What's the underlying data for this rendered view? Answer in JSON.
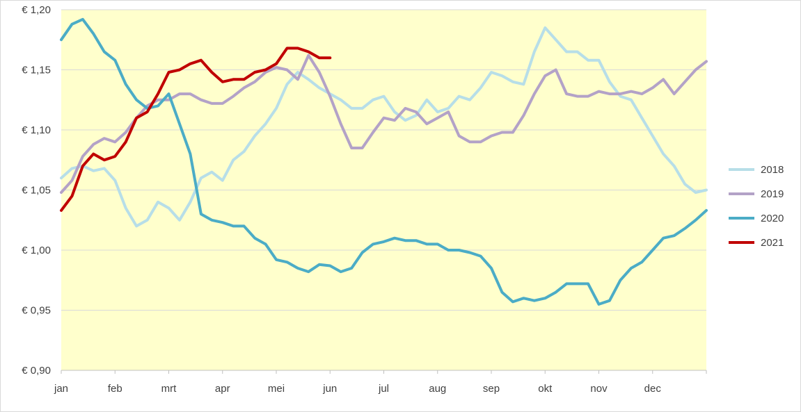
{
  "chart_data": {
    "type": "line",
    "title": "",
    "xlabel": "",
    "ylabel": "",
    "ylim": [
      0.9,
      1.2
    ],
    "y_ticks": [
      "€ 0,90",
      "€ 0,95",
      "€ 1,00",
      "€ 1,05",
      "€ 1,10",
      "€ 1,15",
      "€ 1,20"
    ],
    "x_ticks": [
      "jan",
      "feb",
      "mrt",
      "apr",
      "mei",
      "jun",
      "jul",
      "aug",
      "sep",
      "okt",
      "nov",
      "dec"
    ],
    "x_unit": "month index (0 = jan, 12 = end of dec)",
    "plot_background": "#FFFFCC",
    "gridlines": true,
    "legend_position": "right",
    "series": [
      {
        "name": "2018",
        "color": "#B7DEE8",
        "x": [
          0,
          0.2,
          0.4,
          0.6,
          0.8,
          1.0,
          1.2,
          1.4,
          1.6,
          1.8,
          2.0,
          2.2,
          2.4,
          2.6,
          2.8,
          3.0,
          3.2,
          3.4,
          3.6,
          3.8,
          4.0,
          4.2,
          4.4,
          4.6,
          4.8,
          5.0,
          5.2,
          5.4,
          5.6,
          5.8,
          6.0,
          6.2,
          6.4,
          6.6,
          6.8,
          7.0,
          7.2,
          7.4,
          7.6,
          7.8,
          8.0,
          8.2,
          8.4,
          8.6,
          8.8,
          9.0,
          9.2,
          9.4,
          9.6,
          9.8,
          10.0,
          10.2,
          10.4,
          10.6,
          10.8,
          11.0,
          11.2,
          11.4,
          11.6,
          11.8,
          12.0
        ],
        "y": [
          1.06,
          1.068,
          1.07,
          1.066,
          1.068,
          1.058,
          1.035,
          1.02,
          1.025,
          1.04,
          1.035,
          1.025,
          1.04,
          1.06,
          1.065,
          1.058,
          1.075,
          1.082,
          1.095,
          1.105,
          1.118,
          1.138,
          1.148,
          1.142,
          1.135,
          1.13,
          1.125,
          1.118,
          1.118,
          1.125,
          1.128,
          1.115,
          1.108,
          1.112,
          1.125,
          1.115,
          1.118,
          1.128,
          1.125,
          1.135,
          1.148,
          1.145,
          1.14,
          1.138,
          1.165,
          1.185,
          1.175,
          1.165,
          1.165,
          1.158,
          1.158,
          1.14,
          1.128,
          1.125,
          1.11,
          1.095,
          1.08,
          1.07,
          1.055,
          1.048,
          1.05
        ]
      },
      {
        "name": "2019",
        "color": "#B3A2C7",
        "x": [
          0,
          0.2,
          0.4,
          0.6,
          0.8,
          1.0,
          1.2,
          1.4,
          1.6,
          1.8,
          2.0,
          2.2,
          2.4,
          2.6,
          2.8,
          3.0,
          3.2,
          3.4,
          3.6,
          3.8,
          4.0,
          4.2,
          4.4,
          4.6,
          4.8,
          5.0,
          5.2,
          5.4,
          5.6,
          5.8,
          6.0,
          6.2,
          6.4,
          6.6,
          6.8,
          7.0,
          7.2,
          7.4,
          7.6,
          7.8,
          8.0,
          8.2,
          8.4,
          8.6,
          8.8,
          9.0,
          9.2,
          9.4,
          9.6,
          9.8,
          10.0,
          10.2,
          10.4,
          10.6,
          10.8,
          11.0,
          11.2,
          11.4,
          11.6,
          11.8,
          12.0
        ],
        "y": [
          1.048,
          1.058,
          1.078,
          1.088,
          1.093,
          1.09,
          1.098,
          1.11,
          1.12,
          1.125,
          1.125,
          1.13,
          1.13,
          1.125,
          1.122,
          1.122,
          1.128,
          1.135,
          1.14,
          1.148,
          1.152,
          1.15,
          1.142,
          1.162,
          1.148,
          1.128,
          1.105,
          1.085,
          1.085,
          1.098,
          1.11,
          1.108,
          1.118,
          1.115,
          1.105,
          1.11,
          1.115,
          1.095,
          1.09,
          1.09,
          1.095,
          1.098,
          1.098,
          1.112,
          1.13,
          1.145,
          1.15,
          1.13,
          1.128,
          1.128,
          1.132,
          1.13,
          1.13,
          1.132,
          1.13,
          1.135,
          1.142,
          1.13,
          1.14,
          1.15,
          1.157
        ]
      },
      {
        "name": "2020",
        "color": "#4BACC6",
        "x": [
          0,
          0.2,
          0.4,
          0.6,
          0.8,
          1.0,
          1.2,
          1.4,
          1.6,
          1.8,
          2.0,
          2.2,
          2.4,
          2.6,
          2.8,
          3.0,
          3.2,
          3.4,
          3.6,
          3.8,
          4.0,
          4.2,
          4.4,
          4.6,
          4.8,
          5.0,
          5.2,
          5.4,
          5.6,
          5.8,
          6.0,
          6.2,
          6.4,
          6.6,
          6.8,
          7.0,
          7.2,
          7.4,
          7.6,
          7.8,
          8.0,
          8.2,
          8.4,
          8.6,
          8.8,
          9.0,
          9.2,
          9.4,
          9.6,
          9.8,
          10.0,
          10.2,
          10.4,
          10.6,
          10.8,
          11.0,
          11.2,
          11.4,
          11.6,
          11.8,
          12.0
        ],
        "y": [
          1.175,
          1.188,
          1.192,
          1.18,
          1.165,
          1.158,
          1.138,
          1.125,
          1.118,
          1.12,
          1.13,
          1.105,
          1.08,
          1.03,
          1.025,
          1.023,
          1.02,
          1.02,
          1.01,
          1.005,
          0.992,
          0.99,
          0.985,
          0.982,
          0.988,
          0.987,
          0.982,
          0.985,
          0.998,
          1.005,
          1.007,
          1.01,
          1.008,
          1.008,
          1.005,
          1.005,
          1.0,
          1.0,
          0.998,
          0.995,
          0.985,
          0.965,
          0.957,
          0.96,
          0.958,
          0.96,
          0.965,
          0.972,
          0.972,
          0.972,
          0.955,
          0.958,
          0.975,
          0.985,
          0.99,
          1.0,
          1.01,
          1.012,
          1.018,
          1.025,
          1.033
        ]
      },
      {
        "name": "2021",
        "color": "#C00000",
        "x": [
          0,
          0.2,
          0.4,
          0.6,
          0.8,
          1.0,
          1.2,
          1.4,
          1.6,
          1.8,
          2.0,
          2.2,
          2.4,
          2.6,
          2.8,
          3.0,
          3.2,
          3.4,
          3.6,
          3.8,
          4.0,
          4.2,
          4.4,
          4.6,
          4.8,
          5.0
        ],
        "y": [
          1.033,
          1.045,
          1.07,
          1.08,
          1.075,
          1.078,
          1.09,
          1.11,
          1.115,
          1.13,
          1.148,
          1.15,
          1.155,
          1.158,
          1.148,
          1.14,
          1.142,
          1.142,
          1.148,
          1.15,
          1.155,
          1.168,
          1.168,
          1.165,
          1.16,
          1.16
        ]
      }
    ]
  }
}
